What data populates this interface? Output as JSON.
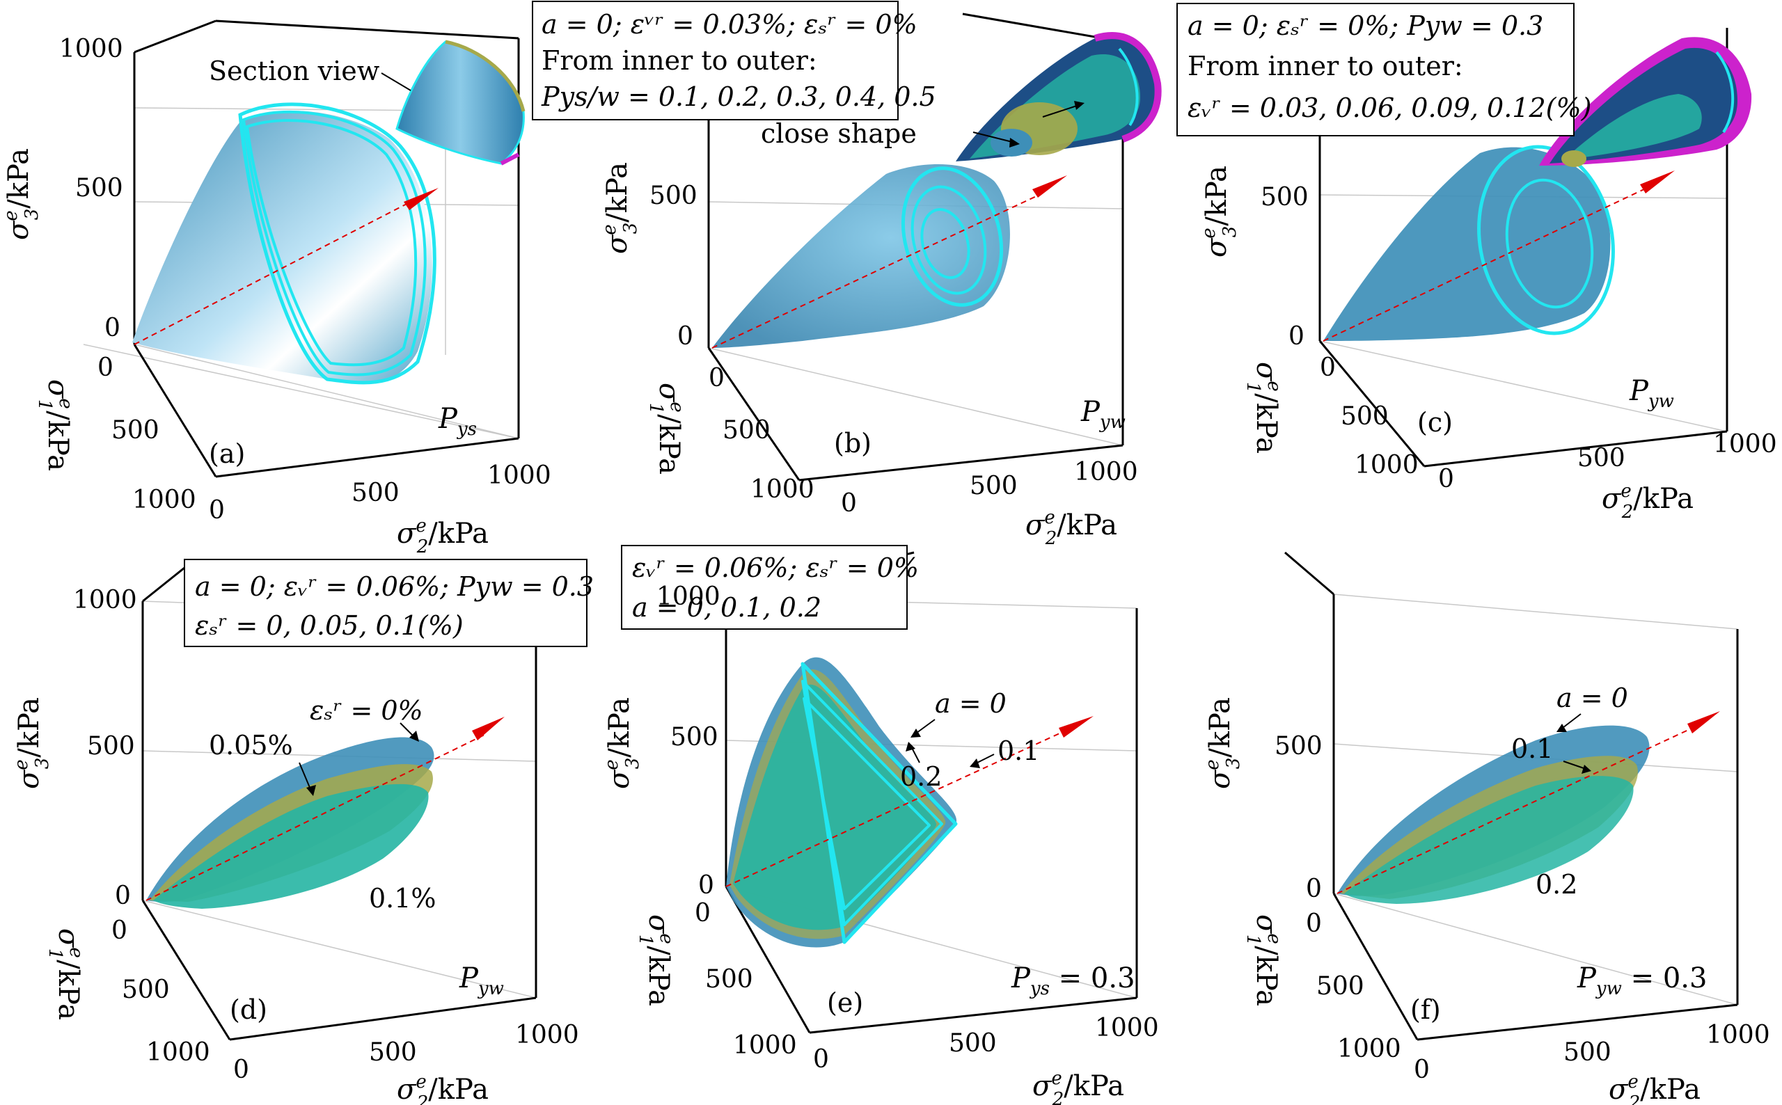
{
  "colors": {
    "surface_blue": "#3e8fb8",
    "surface_light": "#bfe4f6",
    "cyan_edge": "#22e6f0",
    "olive": "#a6a94a",
    "teal": "#26b5a3",
    "magenta": "#cc22cc",
    "dark_navy": "#1d4e86",
    "arrow_red": "#e00000",
    "axis_black": "#000000",
    "grid_gray": "#c8c8c8"
  },
  "axes": {
    "z_label_sigma": "σ",
    "z_label_sup": "e",
    "z_label_sub": "3",
    "z_label_unit": "/kPa",
    "x_label_sigma": "σ",
    "x_label_sup": "e",
    "x_label_sub": "1",
    "x_label_unit": "/kPa",
    "y_label_sigma": "σ",
    "y_label_sup": "e",
    "y_label_sub": "2",
    "y_label_unit": "/kPa",
    "ticks": [
      "0",
      "500",
      "1000"
    ]
  },
  "panels": [
    {
      "id": "a",
      "letter": "(a)",
      "axis_var": "P",
      "axis_var_sub": "ys",
      "annotation": "Section view",
      "legend": []
    },
    {
      "id": "b",
      "letter": "(b)",
      "axis_var": "P",
      "axis_var_sub": "yw",
      "annotation": "close shape",
      "legend": [
        "a = 0; εᵛʳ = 0.03%; εₛʳ = 0%",
        "From inner to outer:",
        "Pys/w = 0.1, 0.2, 0.3, 0.4, 0.5"
      ]
    },
    {
      "id": "c",
      "letter": "(c)",
      "axis_var": "P",
      "axis_var_sub": "yw",
      "annotation": "",
      "legend": [
        "a = 0; εₛʳ = 0%; Pyw = 0.3",
        "From inner to outer:",
        "εᵥʳ = 0.03, 0.06, 0.09, 0.12(%)"
      ]
    },
    {
      "id": "d",
      "letter": "(d)",
      "axis_var": "P",
      "axis_var_sub": "yw",
      "annotation": "",
      "legend": [
        "a = 0; εᵥʳ = 0.06%; Pyw = 0.3",
        "εₛʳ = 0, 0.05, 0.1(%)"
      ],
      "labels": [
        "εₛʳ = 0%",
        "0.05%",
        "0.1%"
      ]
    },
    {
      "id": "e",
      "letter": "(e)",
      "axis_var": "P",
      "axis_var_sub": "ys",
      "axis_var_suffix": " = 0.3",
      "annotation": "",
      "legend": [
        "εᵥʳ = 0.06%; εₛʳ = 0%",
        "a = 0, 0.1, 0.2"
      ],
      "labels": [
        "a = 0",
        "0.1",
        "0.2"
      ]
    },
    {
      "id": "f",
      "letter": "(f)",
      "axis_var": "P",
      "axis_var_sub": "yw",
      "axis_var_suffix": " = 0.3",
      "annotation": "",
      "legend": [],
      "labels": [
        "a = 0",
        "0.1",
        "0.2"
      ]
    }
  ]
}
